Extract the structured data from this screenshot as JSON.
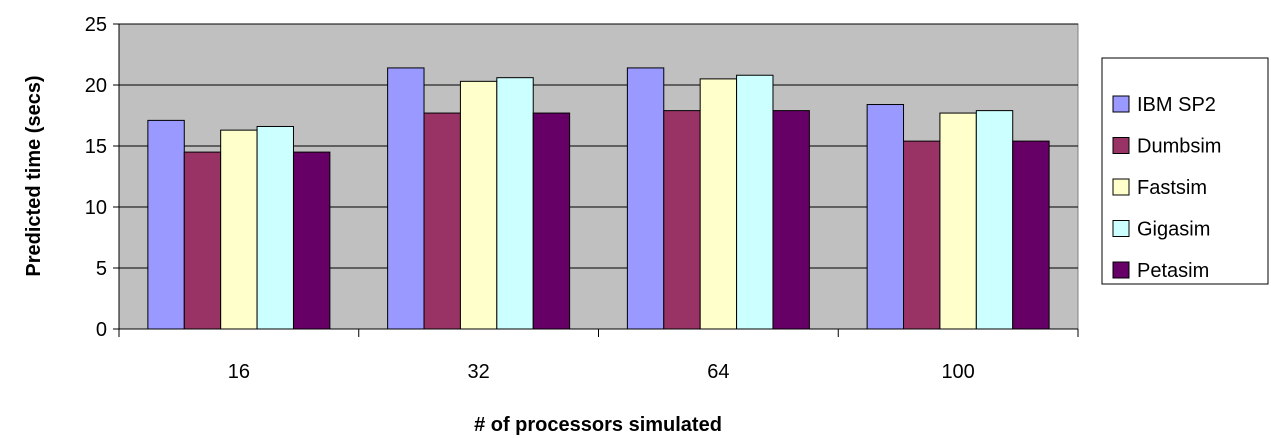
{
  "chart_data": {
    "type": "bar",
    "title": "",
    "xlabel": "# of processors simulated",
    "ylabel": "Predicted time (secs)",
    "categories": [
      "16",
      "32",
      "64",
      "100"
    ],
    "ylim": [
      0,
      25
    ],
    "yticks": [
      0,
      5,
      10,
      15,
      20,
      25
    ],
    "grid": true,
    "legend_position": "right",
    "series": [
      {
        "name": "IBM SP2",
        "color": "#9999FF",
        "values": [
          17.1,
          21.4,
          21.4,
          18.4
        ]
      },
      {
        "name": "Dumbsim",
        "color": "#993366",
        "values": [
          14.5,
          17.7,
          17.9,
          15.4
        ]
      },
      {
        "name": "Fastsim",
        "color": "#FFFFCC",
        "values": [
          16.3,
          20.3,
          20.5,
          17.7
        ]
      },
      {
        "name": "Gigasim",
        "color": "#CCFFFF",
        "values": [
          16.6,
          20.6,
          20.8,
          17.9
        ]
      },
      {
        "name": "Petasim",
        "color": "#660066",
        "values": [
          14.5,
          17.7,
          17.9,
          15.4
        ]
      }
    ],
    "plot_background": "#C0C0C0"
  }
}
